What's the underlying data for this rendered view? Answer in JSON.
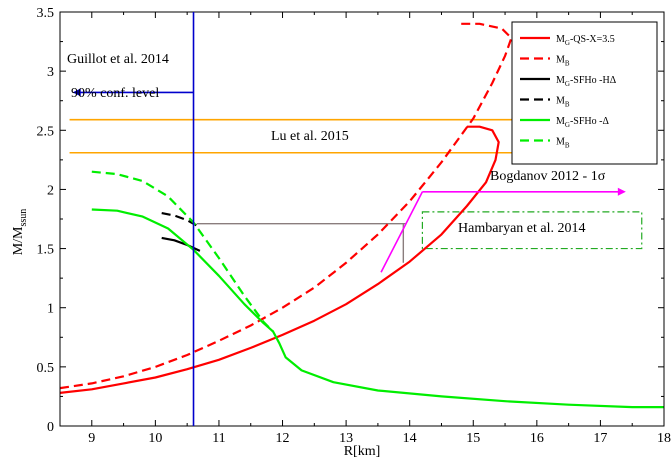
{
  "chart_data": {
    "type": "line",
    "xlabel": "R[km]",
    "ylabel_main": "M/M",
    "ylabel_sub": "ssun",
    "xlim": [
      8.5,
      18
    ],
    "ylim": [
      0,
      3.5
    ],
    "xticks": [
      9,
      10,
      11,
      12,
      13,
      14,
      15,
      16,
      17,
      18
    ],
    "yticks": [
      0,
      0.5,
      1,
      1.5,
      2,
      2.5,
      3,
      3.5
    ],
    "ytick_labels": [
      "0",
      "0.5",
      "1",
      "1.5",
      "2",
      "2.5",
      "3",
      "3.5"
    ],
    "legend_position": "top-right",
    "series": [
      {
        "legend_main": "M",
        "legend_sub": "G",
        "legend_tail": "-QS-X=3.5",
        "color": "#ff0000",
        "dash": false,
        "points": [
          [
            8.5,
            0.28
          ],
          [
            9,
            0.31
          ],
          [
            9.5,
            0.36
          ],
          [
            10,
            0.41
          ],
          [
            10.5,
            0.48
          ],
          [
            11,
            0.56
          ],
          [
            11.5,
            0.66
          ],
          [
            12,
            0.77
          ],
          [
            12.5,
            0.89
          ],
          [
            13,
            1.03
          ],
          [
            13.5,
            1.2
          ],
          [
            14,
            1.39
          ],
          [
            14.5,
            1.62
          ],
          [
            14.9,
            1.86
          ],
          [
            15.2,
            2.06
          ],
          [
            15.35,
            2.25
          ],
          [
            15.4,
            2.4
          ],
          [
            15.3,
            2.5
          ],
          [
            15.1,
            2.53
          ],
          [
            14.9,
            2.53
          ]
        ]
      },
      {
        "legend_main": "M",
        "legend_sub": "B",
        "legend_tail": "",
        "color": "#ff0000",
        "dash": true,
        "points": [
          [
            8.5,
            0.32
          ],
          [
            9,
            0.36
          ],
          [
            9.5,
            0.42
          ],
          [
            10,
            0.5
          ],
          [
            10.5,
            0.6
          ],
          [
            11,
            0.72
          ],
          [
            11.5,
            0.85
          ],
          [
            12,
            1.0
          ],
          [
            12.5,
            1.17
          ],
          [
            13,
            1.38
          ],
          [
            13.5,
            1.62
          ],
          [
            14,
            1.9
          ],
          [
            14.5,
            2.23
          ],
          [
            15,
            2.6
          ],
          [
            15.3,
            2.9
          ],
          [
            15.5,
            3.13
          ],
          [
            15.6,
            3.28
          ],
          [
            15.45,
            3.36
          ],
          [
            15.1,
            3.4
          ],
          [
            14.8,
            3.4
          ]
        ]
      },
      {
        "legend_main": "M",
        "legend_sub": "G",
        "legend_tail": "-SFHo -HΔ",
        "color": "#000000",
        "dash": false,
        "points": [
          [
            10.1,
            1.59
          ],
          [
            10.3,
            1.57
          ],
          [
            10.5,
            1.53
          ],
          [
            10.7,
            1.48
          ]
        ]
      },
      {
        "legend_main": "M",
        "legend_sub": "B",
        "legend_tail": "",
        "color": "#000000",
        "dash": true,
        "points": [
          [
            10.1,
            1.8
          ],
          [
            10.3,
            1.78
          ],
          [
            10.5,
            1.74
          ],
          [
            10.7,
            1.68
          ]
        ]
      },
      {
        "legend_main": "M",
        "legend_sub": "G",
        "legend_tail": "-SFHo -Δ",
        "color": "#00ee00",
        "dash": false,
        "points": [
          [
            9,
            1.83
          ],
          [
            9.4,
            1.82
          ],
          [
            9.8,
            1.77
          ],
          [
            10.2,
            1.67
          ],
          [
            10.6,
            1.49
          ],
          [
            11,
            1.27
          ],
          [
            11.4,
            1.03
          ],
          [
            11.7,
            0.87
          ],
          [
            11.85,
            0.8
          ],
          [
            11.95,
            0.7
          ],
          [
            12.05,
            0.58
          ],
          [
            12.3,
            0.47
          ],
          [
            12.8,
            0.37
          ],
          [
            13.5,
            0.3
          ],
          [
            14.5,
            0.25
          ],
          [
            15.5,
            0.21
          ],
          [
            16.5,
            0.18
          ],
          [
            17.5,
            0.16
          ],
          [
            18,
            0.16
          ]
        ]
      },
      {
        "legend_main": "M",
        "legend_sub": "B",
        "legend_tail": "",
        "color": "#00ee00",
        "dash": true,
        "points": [
          [
            9,
            2.15
          ],
          [
            9.4,
            2.13
          ],
          [
            9.8,
            2.07
          ],
          [
            10.2,
            1.94
          ],
          [
            10.6,
            1.72
          ],
          [
            11,
            1.42
          ],
          [
            11.4,
            1.1
          ],
          [
            11.7,
            0.88
          ],
          [
            11.85,
            0.8
          ]
        ]
      }
    ],
    "constraints": {
      "guillot": {
        "label1": "Guillot et al. 2014",
        "label2": "90% conf. level",
        "x": 10.6,
        "arrow_to_x": 8.7,
        "arrow_y": 2.82,
        "color": "#0000cc"
      },
      "lu": {
        "label": "Lu et al. 2015",
        "y_values": [
          2.59,
          2.31
        ],
        "x_range": [
          8.65,
          17.1
        ],
        "color": "#ffa500"
      },
      "bogdanov": {
        "label": "Bogdanov 2012 - 1σ",
        "color": "#ff00ff",
        "arrow_y": 1.98,
        "arrow_x": [
          14.2,
          17.4
        ],
        "line_from": [
          13.55,
          1.3
        ],
        "line_to": [
          14.2,
          1.98
        ]
      },
      "hambaryan": {
        "label": "Hambaryan et al. 2014",
        "color": "#22aa22",
        "box_x": [
          14.2,
          17.65
        ],
        "box_y": [
          1.5,
          1.81
        ]
      },
      "gray_lines": {
        "color": "#8a7d7d",
        "h_y": 1.71,
        "h_x": [
          10.65,
          13.95
        ],
        "v_x": 13.9,
        "v_y": [
          1.38,
          1.71
        ]
      }
    }
  }
}
